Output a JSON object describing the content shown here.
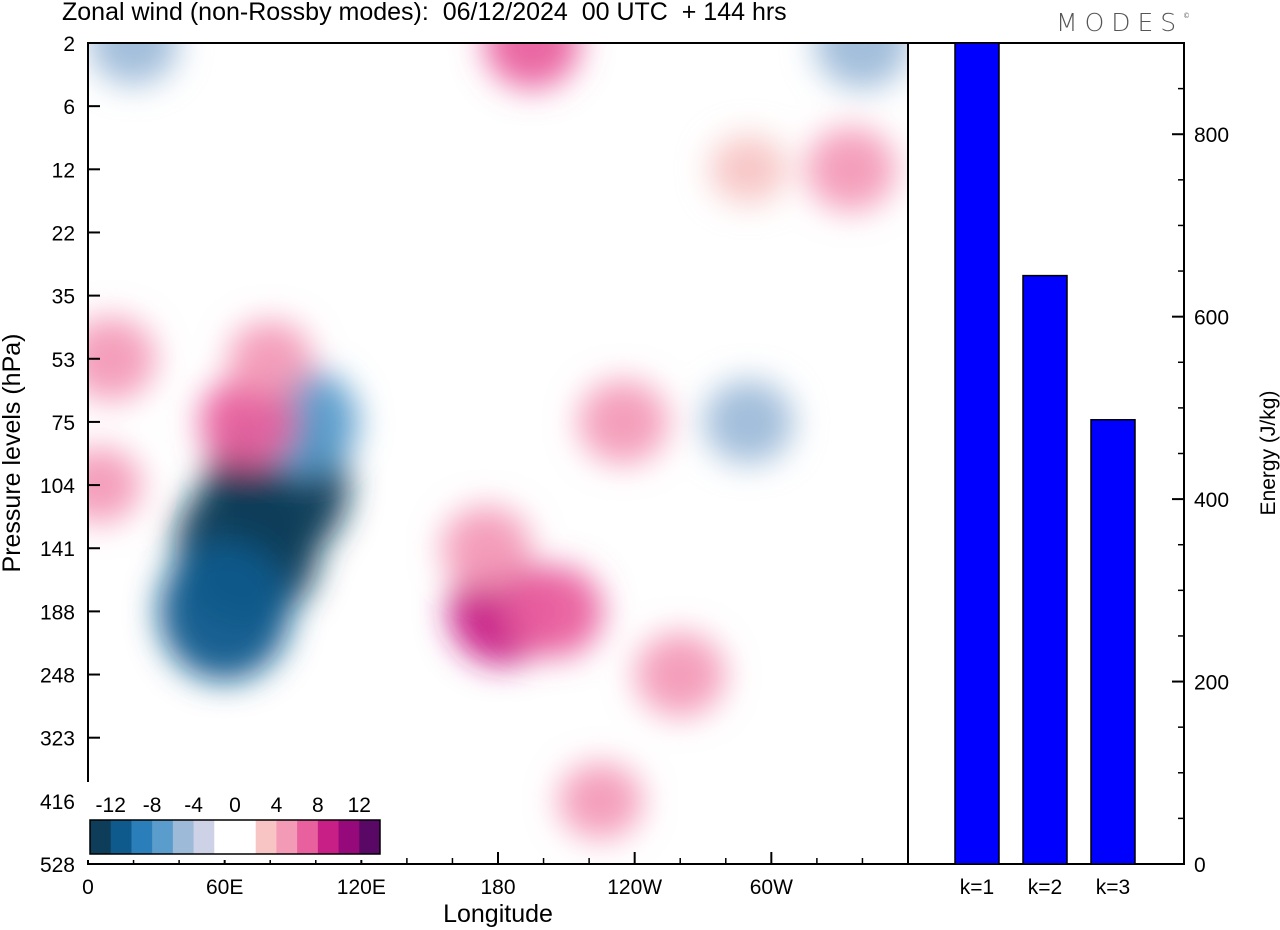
{
  "header": {
    "title": "Zonal wind (non-Rossby modes):  06/12/2024  00 UTC  + 144 hrs",
    "logo_text": "MODES",
    "logo_mark": "©"
  },
  "chart_data": [
    {
      "type": "heatmap",
      "title": "Zonal wind (non-Rossby modes):  06/12/2024  00 UTC  + 144 hrs",
      "xlabel": "Longitude",
      "ylabel": "Pressure levels (hPa)",
      "x_tick_labels": [
        "0",
        "60E",
        "120E",
        "180",
        "120W",
        "60W"
      ],
      "y_tick_labels": [
        "2",
        "6",
        "12",
        "22",
        "35",
        "53",
        "75",
        "104",
        "141",
        "188",
        "248",
        "323",
        "416",
        "528"
      ],
      "colorbar": {
        "labels": [
          "-12",
          "-8",
          "-4",
          "0",
          "4",
          "8",
          "12"
        ],
        "colors": [
          "#0d3d58",
          "#0e5a8c",
          "#2a7fbb",
          "#5a9ccb",
          "#9dbad9",
          "#cdd2e6",
          "#ffffff",
          "#ffffff",
          "#f8c4c4",
          "#f39ab7",
          "#e9609e",
          "#c81f87",
          "#96097a",
          "#5a0866"
        ],
        "placement": "bottom-left"
      },
      "features": [
        {
          "x": 70,
          "y": 141,
          "value": -14
        },
        {
          "x": 83,
          "y": 104,
          "value": -14
        },
        {
          "x": 60,
          "y": 188,
          "value": -12
        },
        {
          "x": 95,
          "y": 75,
          "value": -8
        },
        {
          "x": 70,
          "y": 75,
          "value": 6
        },
        {
          "x": 80,
          "y": 53,
          "value": 4
        },
        {
          "x": 182,
          "y": 188,
          "value": 8
        },
        {
          "x": 175,
          "y": 141,
          "value": 5
        },
        {
          "x": 205,
          "y": 188,
          "value": 6
        },
        {
          "x": 225,
          "y": 416,
          "value": 4
        },
        {
          "x": 260,
          "y": 248,
          "value": 5
        },
        {
          "x": 235,
          "y": 75,
          "value": 5
        },
        {
          "x": 195,
          "y": 2,
          "value": 6
        },
        {
          "x": 10,
          "y": 53,
          "value": 5
        },
        {
          "x": 5,
          "y": 104,
          "value": 4
        },
        {
          "x": 340,
          "y": 2,
          "value": -6
        },
        {
          "x": 290,
          "y": 75,
          "value": -5
        },
        {
          "x": 20,
          "y": 2,
          "value": -5
        },
        {
          "x": 335,
          "y": 12,
          "value": 5
        },
        {
          "x": 290,
          "y": 12,
          "value": 3
        }
      ],
      "grid": false
    },
    {
      "type": "bar",
      "categories": [
        "k=1",
        "k=2",
        "k=3"
      ],
      "values": [
        900,
        645,
        487
      ],
      "ylabel": "Energy (J/kg)",
      "y_tick_labels": [
        "0",
        "200",
        "400",
        "600",
        "800"
      ],
      "ylim": [
        0,
        900
      ],
      "bar_color": "#0000ff"
    }
  ]
}
